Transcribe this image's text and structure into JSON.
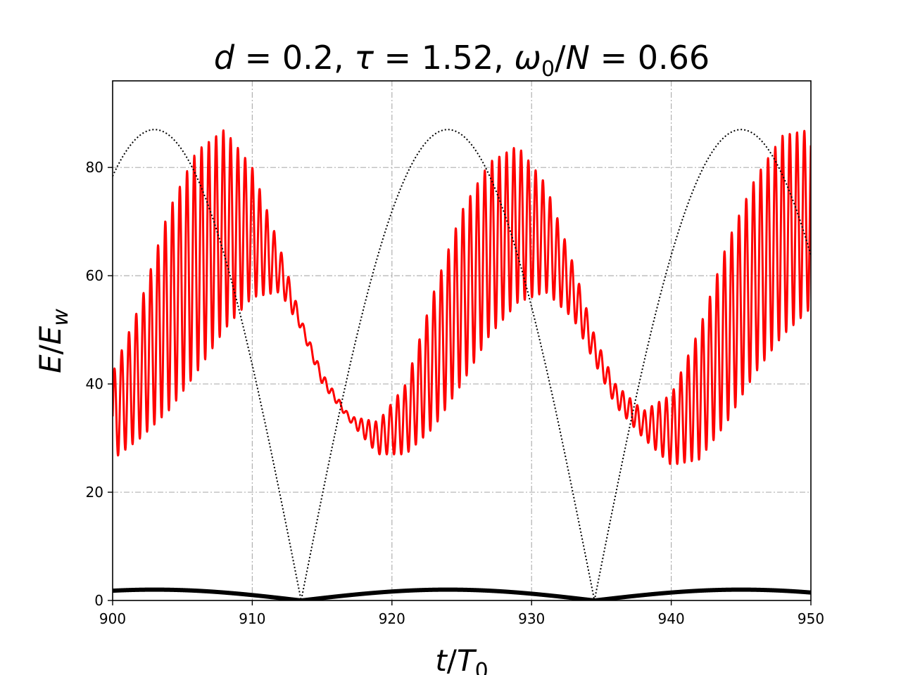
{
  "chart_data": {
    "type": "line",
    "title": "d = 0.2, τ = 1.52, ω0/N = 0.66",
    "title_parts": {
      "d_value": "0.2",
      "tau_value": "1.52",
      "ratio_value": "0.66"
    },
    "xlabel": "t/T0",
    "ylabel": "E/Ew",
    "xlim": [
      900,
      950
    ],
    "ylim": [
      0,
      96
    ],
    "xticks": [
      900,
      910,
      920,
      930,
      940,
      950
    ],
    "yticks": [
      0,
      20,
      40,
      60,
      80
    ],
    "grid": true,
    "grid_style": "dash-dot",
    "legend": "none",
    "series": [
      {
        "style": "solid",
        "color": "#ff0000",
        "description_key": "oscillating-energy",
        "envelope_period": 21,
        "fast_period": 0.52,
        "lower_envelope": {
          "x": [
            900,
            902,
            904,
            906,
            908,
            910,
            912,
            913.5,
            915,
            917,
            919,
            921,
            923,
            925,
            927,
            929,
            931,
            933,
            934.5,
            936,
            938,
            940,
            942,
            944,
            946,
            948,
            950
          ],
          "y": [
            26,
            30,
            35,
            42,
            50,
            56,
            57,
            50,
            40,
            33,
            27,
            27,
            32,
            40,
            49,
            55,
            57,
            52,
            44,
            36,
            30,
            25,
            26,
            33,
            42,
            49,
            54
          ]
        },
        "upper_envelope": {
          "x": [
            900,
            902,
            904,
            906,
            908,
            910,
            912,
            913.5,
            915,
            917,
            919,
            921,
            923,
            925,
            927,
            929,
            931,
            933,
            934.5,
            936,
            938,
            940,
            942,
            944,
            946,
            948,
            950
          ],
          "y": [
            42,
            55,
            72,
            83,
            87,
            80,
            65,
            52,
            42,
            34,
            33,
            40,
            57,
            72,
            81,
            84,
            77,
            62,
            49,
            40,
            35,
            38,
            50,
            66,
            78,
            86,
            87
          ]
        }
      },
      {
        "style": "dotted",
        "color": "#000000",
        "description_key": "rectified-sine",
        "amplitude": 87,
        "zero_crossings": [
          913.5,
          934.5
        ],
        "period": 21
      },
      {
        "style": "thick-solid",
        "color": "#000000",
        "description_key": "rectified-sine-small",
        "amplitude": 2,
        "zero_crossings": [
          913.5,
          934.5
        ],
        "period": 21
      }
    ]
  }
}
